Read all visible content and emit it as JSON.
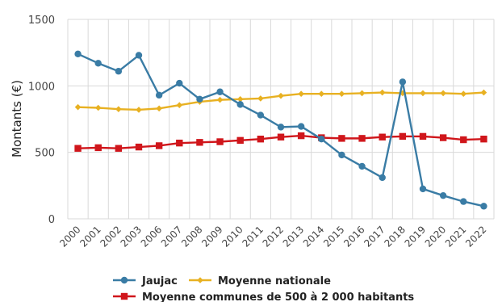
{
  "chart_data": {
    "type": "line",
    "title": "",
    "xlabel": "",
    "ylabel": "Montants (€)",
    "ylim": [
      0,
      1500
    ],
    "yticks": [
      0,
      500,
      1000,
      1500
    ],
    "grid": true,
    "legend_position": "bottom",
    "categories": [
      "2000",
      "2001",
      "2002",
      "2003",
      "2006",
      "2007",
      "2008",
      "2009",
      "2010",
      "2011",
      "2012",
      "2013",
      "2014",
      "2015",
      "2016",
      "2017",
      "2018",
      "2019",
      "2020",
      "2021",
      "2022"
    ],
    "series": [
      {
        "name": "Jaujac",
        "color": "#3a7ca5",
        "marker": "circle",
        "values": [
          1240,
          1170,
          1110,
          1230,
          930,
          1020,
          900,
          955,
          860,
          780,
          690,
          695,
          600,
          480,
          395,
          310,
          1030,
          225,
          175,
          130,
          95
        ]
      },
      {
        "name": "Moyenne nationale",
        "color": "#e8b122",
        "marker": "diamond",
        "values": [
          840,
          835,
          825,
          820,
          830,
          855,
          880,
          895,
          900,
          905,
          925,
          940,
          940,
          940,
          945,
          950,
          945,
          945,
          945,
          940,
          950
        ]
      },
      {
        "name": "Moyenne communes de 500 à 2 000 habitants",
        "color": "#d0161b",
        "marker": "square",
        "values": [
          530,
          535,
          530,
          540,
          550,
          570,
          575,
          580,
          590,
          600,
          615,
          625,
          610,
          605,
          605,
          615,
          620,
          620,
          610,
          595,
          600
        ]
      }
    ]
  }
}
